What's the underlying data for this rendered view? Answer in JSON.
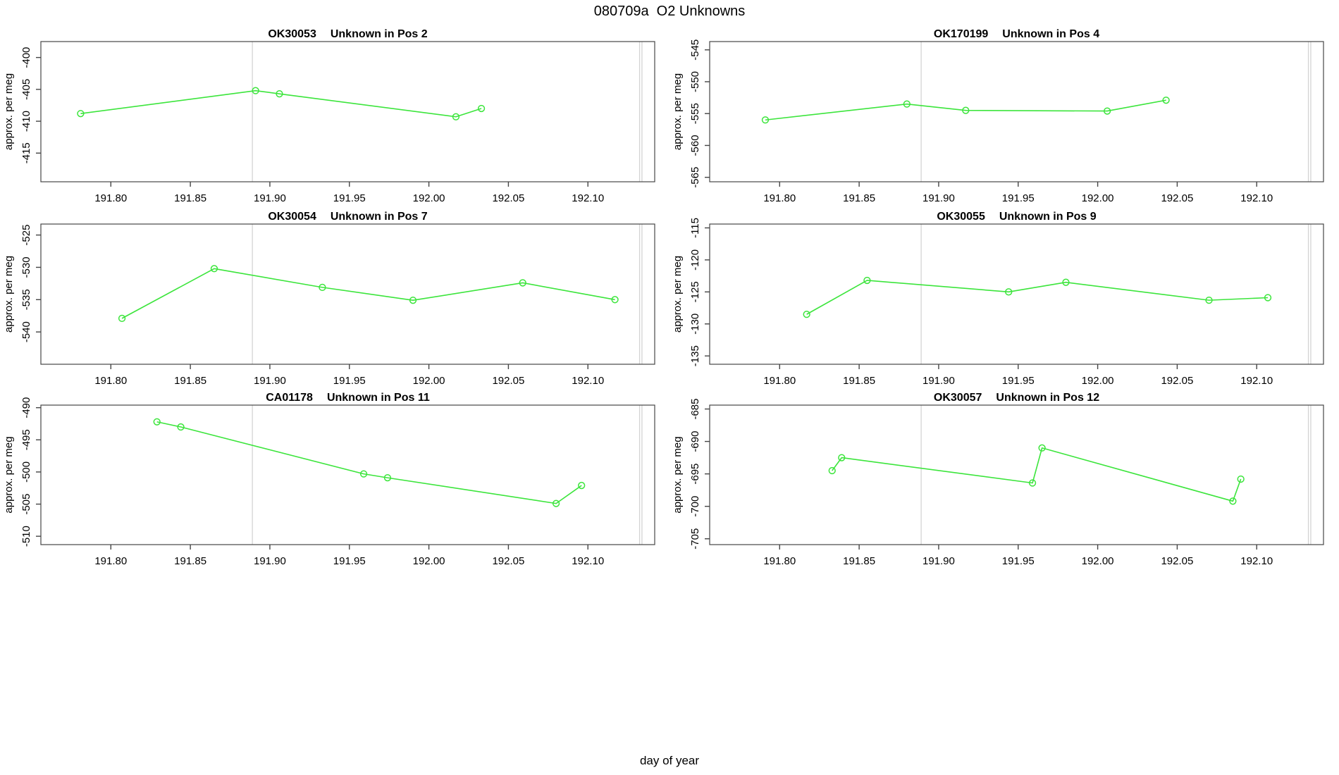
{
  "chart_data": {
    "type": "line",
    "title": "080709a  O2 Unknowns",
    "xlabel": "day of year",
    "ylabel": "approx. per meg",
    "xlim": [
      191.756,
      192.142
    ],
    "xticks": [
      191.8,
      191.85,
      191.9,
      191.95,
      192.0,
      192.05,
      192.1
    ],
    "vlines": [
      191.889,
      192.1325,
      192.134
    ],
    "line_color": "#3ce53c",
    "vline_color": "#d3d3d3",
    "box_color": "#454545",
    "legend": "none",
    "grid": "off",
    "panels": [
      {
        "code": "OK30053",
        "label": "Unknown in Pos 2",
        "ylim": [
          -419.5,
          -397.5
        ],
        "yticks": [
          -415,
          -410,
          -405,
          -400
        ],
        "points": [
          [
            191.781,
            -408.8
          ],
          [
            191.891,
            -405.2
          ],
          [
            191.906,
            -405.7
          ],
          [
            192.017,
            -409.3
          ],
          [
            192.033,
            -408.0
          ]
        ]
      },
      {
        "code": "OK170199",
        "label": "Unknown in Pos 4",
        "ylim": [
          -565.7,
          -543.7
        ],
        "yticks": [
          -565,
          -560,
          -555,
          -550,
          -545
        ],
        "points": [
          [
            191.791,
            -556.0
          ],
          [
            191.88,
            -553.5
          ],
          [
            191.917,
            -554.5
          ],
          [
            192.006,
            -554.6
          ],
          [
            192.043,
            -552.9
          ]
        ]
      },
      {
        "code": "OK30054",
        "label": "Unknown in Pos 7",
        "ylim": [
          -545.0,
          -523.3
        ],
        "yticks": [
          -540,
          -535,
          -530,
          -525
        ],
        "points": [
          [
            191.807,
            -537.9
          ],
          [
            191.865,
            -530.2
          ],
          [
            191.933,
            -533.1
          ],
          [
            191.99,
            -535.1
          ],
          [
            192.059,
            -532.4
          ],
          [
            192.117,
            -535.0
          ]
        ]
      },
      {
        "code": "OK30055",
        "label": "Unknown in Pos 9",
        "ylim": [
          -136.3,
          -114.4
        ],
        "yticks": [
          -135,
          -130,
          -125,
          -120,
          -115
        ],
        "points": [
          [
            191.817,
            -128.5
          ],
          [
            191.855,
            -123.2
          ],
          [
            191.944,
            -125.0
          ],
          [
            191.98,
            -123.5
          ],
          [
            192.07,
            -126.3
          ],
          [
            192.107,
            -125.9
          ]
        ]
      },
      {
        "code": "CA01178",
        "label": "Unknown in Pos 11",
        "ylim": [
          -511.3,
          -489.6
        ],
        "yticks": [
          -510,
          -505,
          -500,
          -495,
          -490
        ],
        "points": [
          [
            191.829,
            -492.2
          ],
          [
            191.844,
            -493.0
          ],
          [
            191.959,
            -500.3
          ],
          [
            191.974,
            -500.9
          ],
          [
            192.08,
            -504.9
          ],
          [
            192.096,
            -502.1
          ]
        ]
      },
      {
        "code": "OK30057",
        "label": "Unknown in Pos 12",
        "ylim": [
          -705.9,
          -684.4
        ],
        "yticks": [
          -705,
          -700,
          -695,
          -690,
          -685
        ],
        "points": [
          [
            191.833,
            -694.5
          ],
          [
            191.839,
            -692.5
          ],
          [
            191.959,
            -696.4
          ],
          [
            191.965,
            -691.0
          ],
          [
            192.085,
            -699.2
          ],
          [
            192.09,
            -695.8
          ]
        ]
      }
    ]
  }
}
